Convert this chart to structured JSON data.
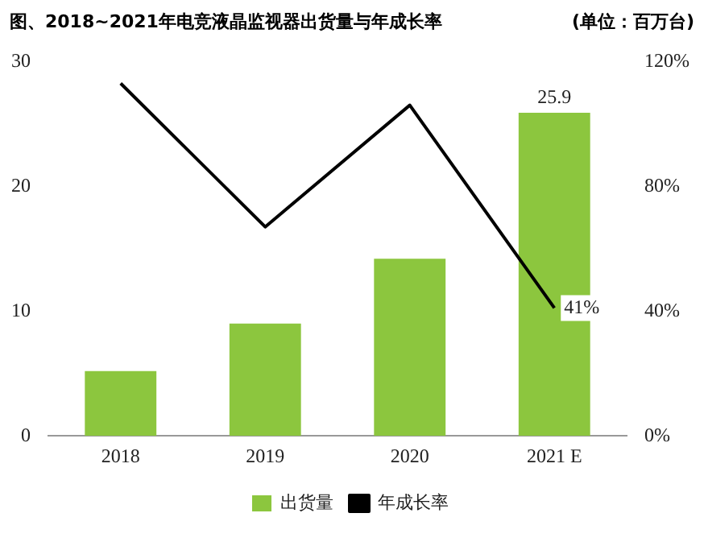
{
  "chart_data": {
    "type": "bar",
    "title": "图、2018~2021年电竞液晶监视器出货量与年成长率",
    "subtitle": "(单位：百万台)",
    "categories": [
      "2018",
      "2019",
      "2020",
      "2021 E"
    ],
    "series": [
      {
        "name": "出货量",
        "color": "#8cc63e",
        "values": [
          5.2,
          9.0,
          14.2,
          25.9
        ],
        "value_labels": [
          null,
          null,
          null,
          "25.9"
        ]
      },
      {
        "name": "年成长率",
        "type": "line",
        "axis": "y2",
        "color": "#000000",
        "values": [
          113,
          67,
          106,
          41
        ],
        "value_labels": [
          null,
          null,
          null,
          "41%"
        ]
      }
    ],
    "ylim": [
      0,
      30
    ],
    "yticks": [
      0,
      10,
      20,
      30
    ],
    "y2lim": [
      0,
      120
    ],
    "y2ticks": [
      {
        "value": 0,
        "label": "0%"
      },
      {
        "value": 40,
        "label": "40%"
      },
      {
        "value": 80,
        "label": "80%"
      },
      {
        "value": 120,
        "label": "120%"
      }
    ],
    "grid": false,
    "legend": "bottom",
    "marker": "none",
    "line_style": "solid"
  }
}
